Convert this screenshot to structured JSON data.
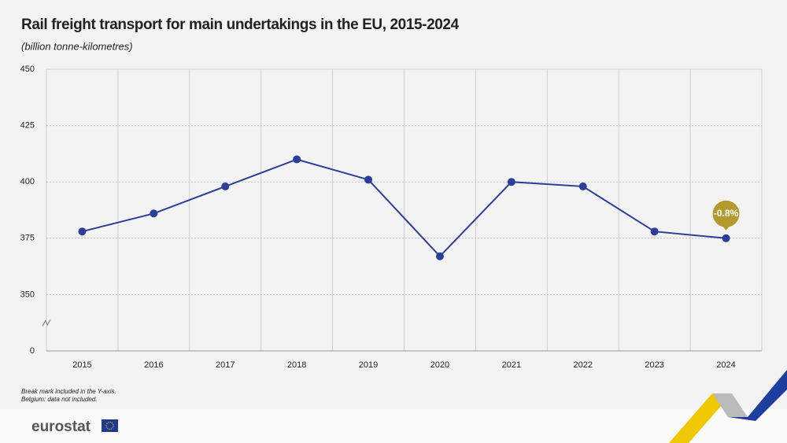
{
  "chart_data": {
    "type": "line",
    "title": "Rail freight transport for main undertakings in the EU, 2015-2024",
    "subtitle": "(billion tonne-kilometres)",
    "categories": [
      "2015",
      "2016",
      "2017",
      "2018",
      "2019",
      "2020",
      "2021",
      "2022",
      "2023",
      "2024"
    ],
    "series": [
      {
        "name": "Rail freight transport",
        "color": "#2d3e99",
        "values": [
          378,
          386,
          398,
          410,
          401,
          367,
          400,
          398,
          378,
          375
        ]
      }
    ],
    "ylim": [
      0,
      450
    ],
    "yticks": [
      0,
      350,
      375,
      400,
      425,
      450
    ],
    "y_break": true,
    "grid": true,
    "annotations": [
      {
        "text": "-0.8%",
        "category": "2024",
        "color": "#b39a2e"
      }
    ],
    "notes": [
      "Break mark included in the Y-axis.",
      "Belgium: data not included."
    ],
    "logo": "eurostat"
  }
}
